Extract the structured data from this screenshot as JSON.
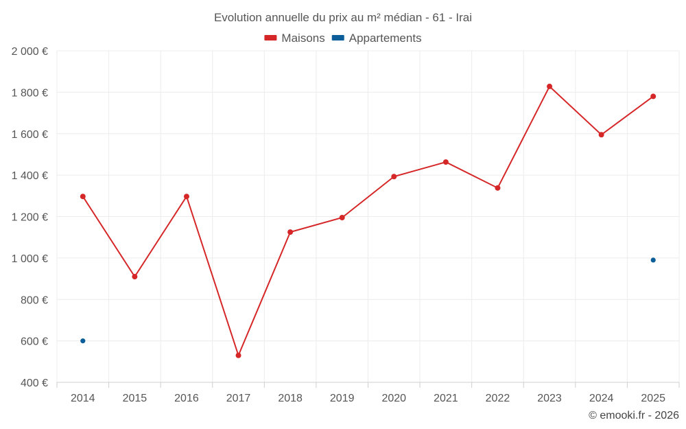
{
  "chart_data": {
    "type": "line",
    "title": "Evolution annuelle du prix au m² médian - 61 - Irai",
    "xlabel": "",
    "ylabel": "",
    "categories": [
      "2014",
      "2015",
      "2016",
      "2017",
      "2018",
      "2019",
      "2020",
      "2021",
      "2022",
      "2023",
      "2024",
      "2025"
    ],
    "ylim": [
      400,
      2000
    ],
    "yticks": [
      400,
      600,
      800,
      1000,
      1200,
      1400,
      1600,
      1800,
      2000
    ],
    "ytick_labels": [
      "400 €",
      "600 €",
      "800 €",
      "1 000 €",
      "1 200 €",
      "1 400 €",
      "1 600 €",
      "1 800 €",
      "2 000 €"
    ],
    "grid": true,
    "legend_position": "top-center",
    "series": [
      {
        "name": "Maisons",
        "color": "#d62728",
        "style": "line-markers",
        "values": [
          1297,
          910,
          1297,
          530,
          1125,
          1195,
          1393,
          1463,
          1338,
          1828,
          1595,
          1780
        ]
      },
      {
        "name": "Appartements",
        "color": "#0b5e99",
        "style": "markers",
        "values": [
          600,
          null,
          null,
          null,
          null,
          null,
          null,
          null,
          null,
          null,
          null,
          990
        ]
      }
    ]
  },
  "credit": "© emooki.fr - 2026"
}
